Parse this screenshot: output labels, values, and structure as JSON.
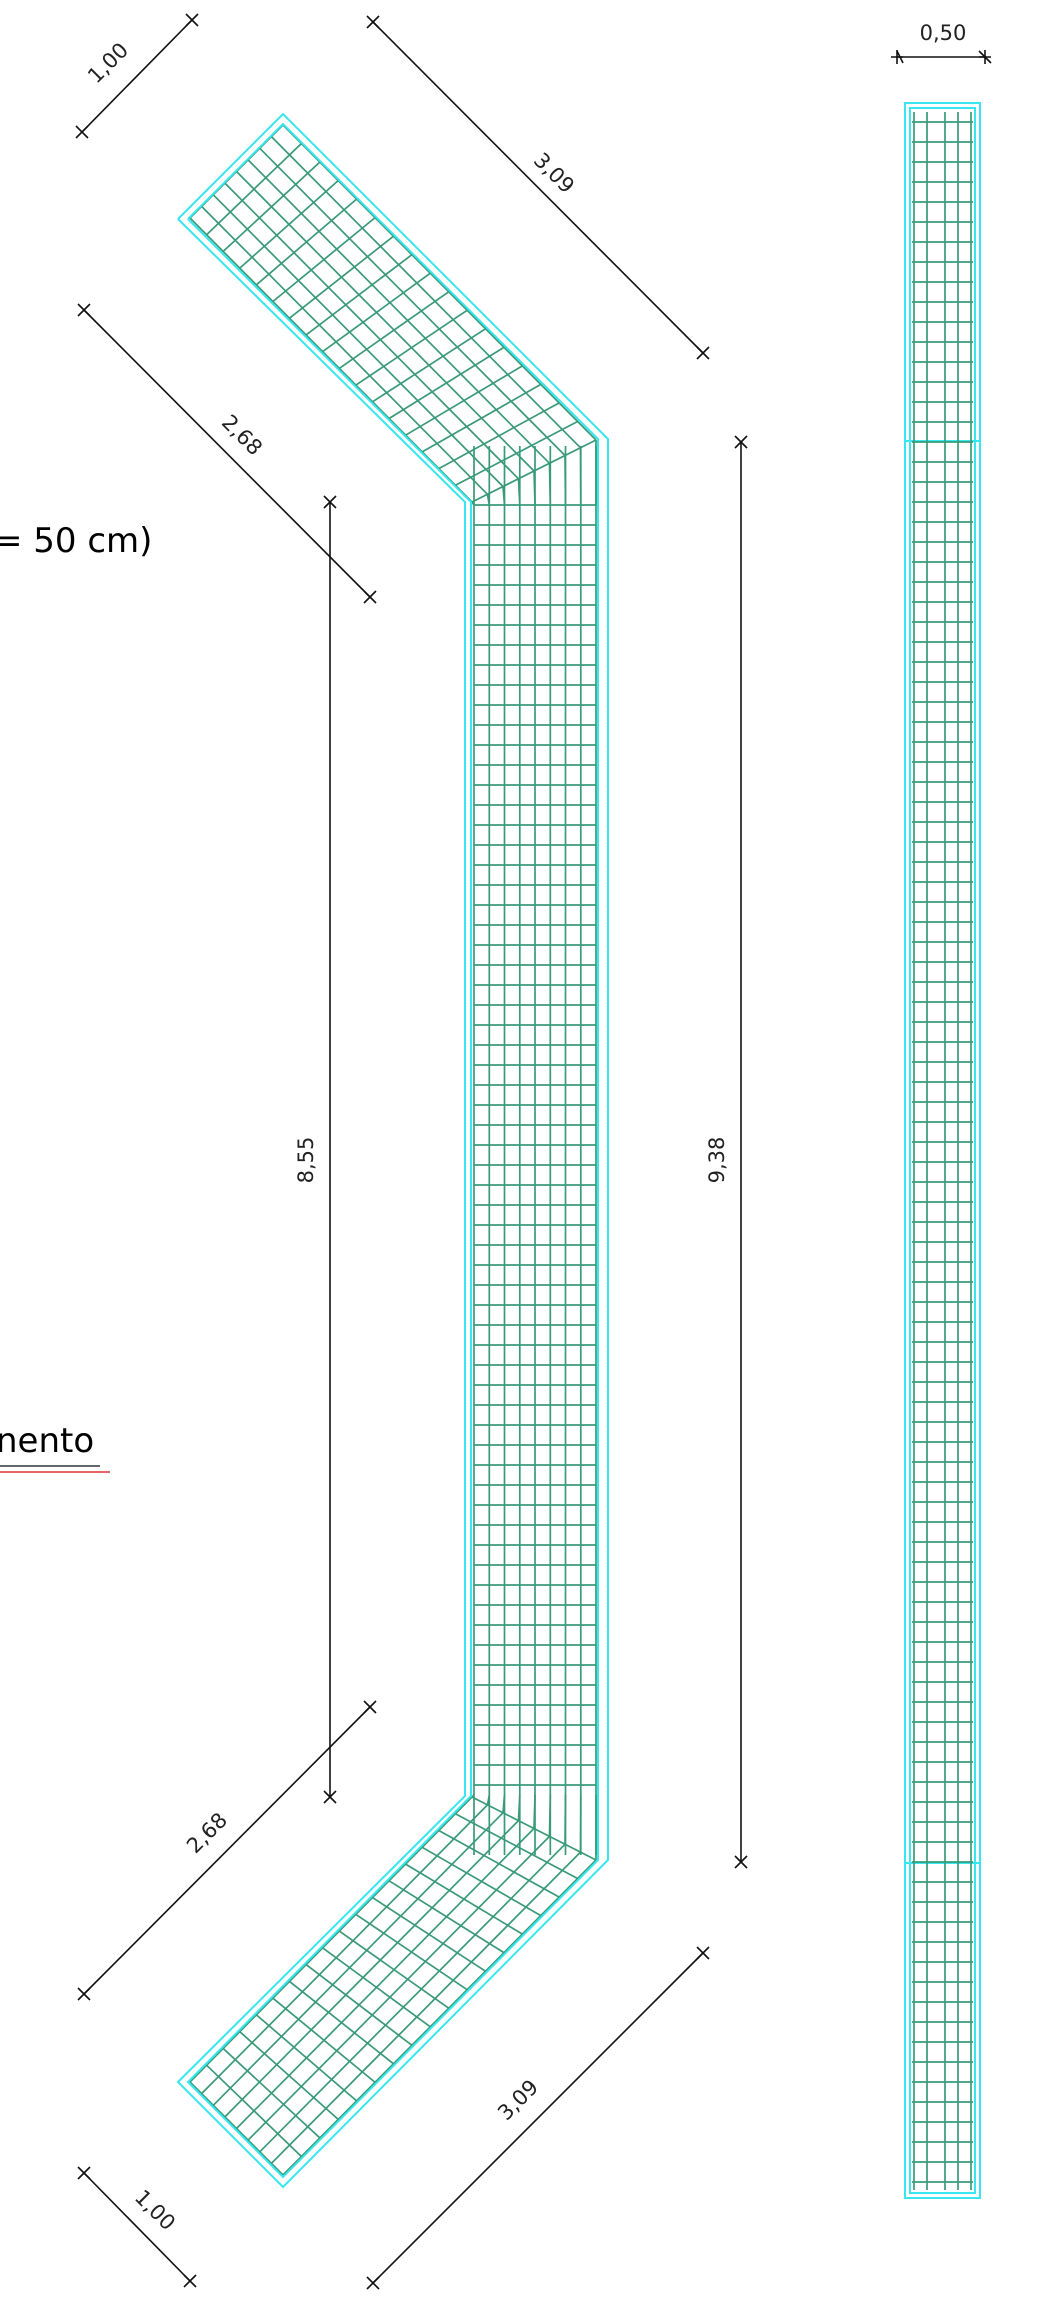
{
  "labels": {
    "title_fragment": "= 50 cm)",
    "subtitle_fragment": "nento",
    "dim_top_end": "1,00",
    "dim_top_outer": "3,09",
    "dim_top_inner": "2,68",
    "dim_web_inner": "8,55",
    "dim_web_outer": "9,38",
    "dim_bottom_inner": "2,68",
    "dim_bottom_outer": "3,09",
    "dim_bottom_end": "1,00",
    "dim_section_width": "0,50"
  },
  "colors": {
    "outline": "#37e6ee",
    "rebar": "#3a9a78",
    "dimension": "#111111",
    "underline_dark": "#333333",
    "underline_red": "#e03030"
  }
}
